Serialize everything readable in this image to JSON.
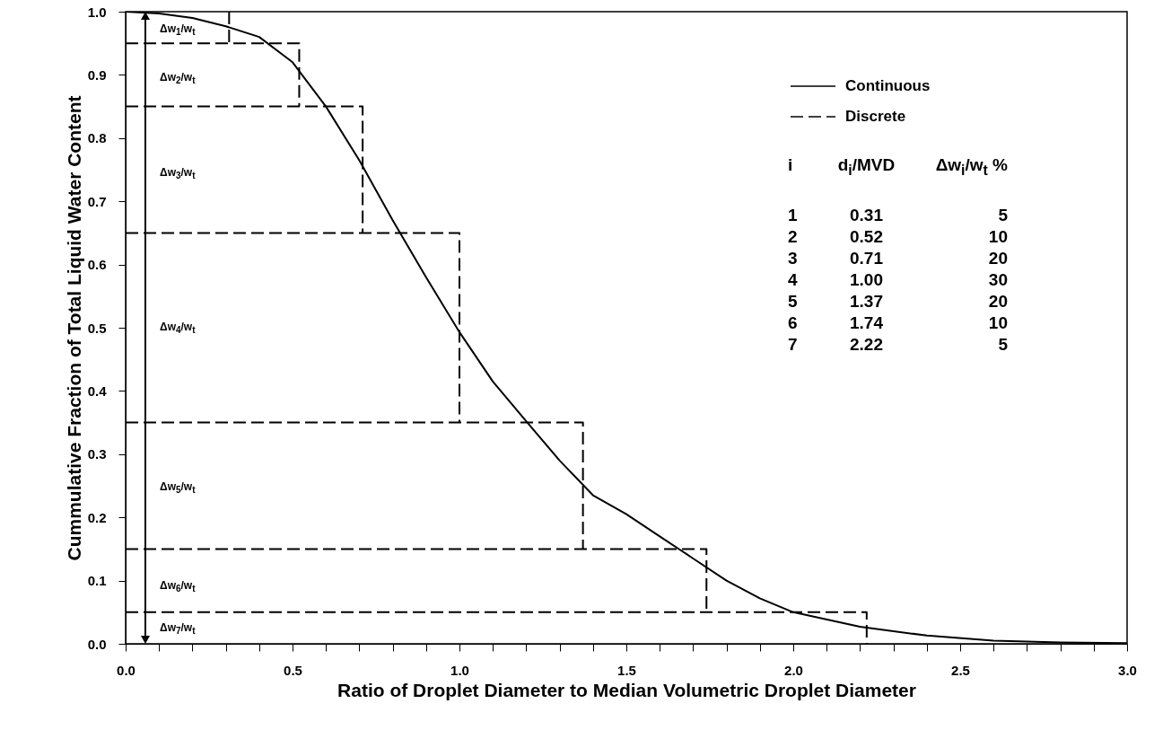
{
  "chart_data": {
    "type": "line",
    "xlabel": "Ratio of Droplet Diameter to Median Volumetric Droplet Diameter",
    "ylabel": "Cummulative Fraction of Total Liquid Water Content",
    "xlim": [
      0,
      3
    ],
    "ylim": [
      0,
      1
    ],
    "xticks": [
      {
        "value": 0,
        "label": "0.0"
      },
      {
        "value": 0.1,
        "label": null
      },
      {
        "value": 0.2,
        "label": null
      },
      {
        "value": 0.3,
        "label": null
      },
      {
        "value": 0.4,
        "label": null
      },
      {
        "value": 0.5,
        "label": "0.5"
      },
      {
        "value": 0.6,
        "label": null
      },
      {
        "value": 0.7,
        "label": null
      },
      {
        "value": 0.8,
        "label": null
      },
      {
        "value": 0.9,
        "label": null
      },
      {
        "value": 1,
        "label": "1.0"
      },
      {
        "value": 1.1,
        "label": null
      },
      {
        "value": 1.2,
        "label": null
      },
      {
        "value": 1.3,
        "label": null
      },
      {
        "value": 1.4,
        "label": null
      },
      {
        "value": 1.5,
        "label": "1.5"
      },
      {
        "value": 1.6,
        "label": null
      },
      {
        "value": 1.7,
        "label": null
      },
      {
        "value": 1.8,
        "label": null
      },
      {
        "value": 1.9,
        "label": null
      },
      {
        "value": 2,
        "label": "2.0"
      },
      {
        "value": 2.1,
        "label": null
      },
      {
        "value": 2.2,
        "label": null
      },
      {
        "value": 2.3,
        "label": null
      },
      {
        "value": 2.4,
        "label": null
      },
      {
        "value": 2.5,
        "label": "2.5"
      },
      {
        "value": 2.6,
        "label": null
      },
      {
        "value": 2.7,
        "label": null
      },
      {
        "value": 2.8,
        "label": null
      },
      {
        "value": 2.9,
        "label": null
      },
      {
        "value": 3,
        "label": "3.0"
      }
    ],
    "yticks": [
      {
        "value": 0,
        "label": "0.0"
      },
      0.1,
      0.2,
      0.3,
      0.4,
      0.5,
      0.6,
      0.7,
      0.8,
      0.9,
      {
        "value": 1,
        "label": "1.0"
      }
    ],
    "legend": "top right",
    "series": [
      {
        "name": "Continuous",
        "color": "#000000",
        "line_style": "solid",
        "x": [
          0,
          0.1,
          0.2,
          0.3,
          0.4,
          0.5,
          0.6,
          0.7,
          0.8,
          0.9,
          1.0,
          1.1,
          1.2,
          1.3,
          1.4,
          1.5,
          1.6,
          1.7,
          1.8,
          1.9,
          2.0,
          2.2,
          2.4,
          2.6,
          2.8,
          3.0
        ],
        "values": [
          1.0,
          0.997,
          0.99,
          0.977,
          0.96,
          0.92,
          0.85,
          0.765,
          0.67,
          0.58,
          0.493,
          0.415,
          0.352,
          0.29,
          0.235,
          0.205,
          0.17,
          0.135,
          0.1,
          0.072,
          0.05,
          0.027,
          0.013,
          0.005,
          0.002,
          0.001
        ]
      },
      {
        "name": "Discrete",
        "color": "#000000",
        "line_style": "dashed",
        "x": [
          0.31,
          0.31,
          null,
          0,
          0.52,
          0.52,
          null,
          0,
          0.71,
          0.71,
          null,
          0,
          1.0,
          1.0,
          null,
          0,
          1.37,
          1.37,
          null,
          0,
          1.74,
          1.74,
          null,
          0,
          2.22,
          2.22
        ],
        "values": [
          1.0,
          0.95,
          null,
          0.95,
          0.95,
          0.85,
          null,
          0.85,
          0.85,
          0.65,
          null,
          0.65,
          0.65,
          0.35,
          null,
          0.35,
          0.35,
          0.15,
          null,
          0.15,
          0.15,
          0.05,
          null,
          0.05,
          0.05,
          0.0
        ]
      }
    ],
    "annotations": [
      "Δw$_{1}$/w$_{t}$",
      "Δw$_{2}$/w$_{t}$",
      "Δw$_{3}$/w$_{t}$",
      "Δw$_{4}$/w$_{t}$",
      "Δw$_{5}$/w$_{t}$",
      "Δw$_{6}$/w$_{t}$",
      "Δw$_{7}$/w$_{t}$",
      "i",
      "d$_{i}$/MVD",
      "Δw$_{i}$/w$_{t}$ %",
      "1",
      "0.31",
      "5",
      "2",
      "0.52",
      "10",
      "3",
      "0.71",
      "20",
      "4",
      "1.00",
      "30",
      "5",
      "1.37",
      "20",
      "6",
      "1.74",
      "10",
      "7",
      "2.22",
      "5"
    ]
  }
}
